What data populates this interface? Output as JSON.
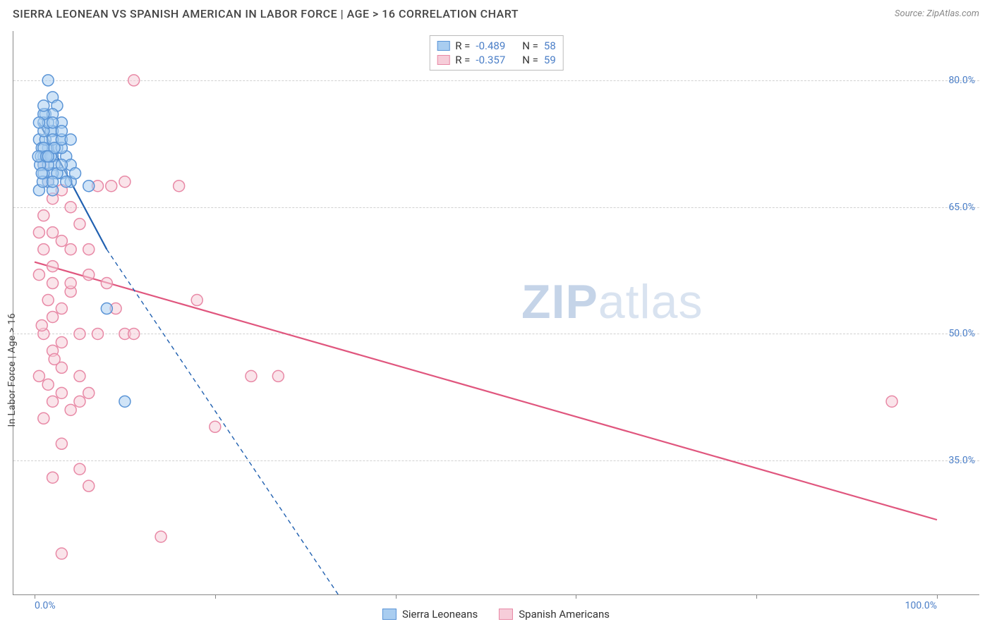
{
  "header": {
    "title": "SIERRA LEONEAN VS SPANISH AMERICAN IN LABOR FORCE | AGE > 16 CORRELATION CHART",
    "source": "Source: ZipAtlas.com"
  },
  "chart": {
    "type": "scatter",
    "ylabel": "In Labor Force | Age > 16",
    "xlim": [
      0,
      100
    ],
    "ylim": [
      20,
      85
    ],
    "yticks": [
      35.0,
      50.0,
      65.0,
      80.0
    ],
    "ytick_labels": [
      "35.0%",
      "50.0%",
      "65.0%",
      "80.0%"
    ],
    "xticks": [
      0,
      20,
      40,
      60,
      80,
      100
    ],
    "xtick_labels_shown": {
      "0": "0.0%",
      "100": "100.0%"
    },
    "grid_color": "#d0d0d0",
    "background_color": "#ffffff",
    "axis_color": "#888888",
    "label_color": "#4a7ec7",
    "point_radius": 8,
    "point_stroke_width": 1.5,
    "line_width": 2.2,
    "series": [
      {
        "name": "Sierra Leoneans",
        "color_fill": "#a9cdf0",
        "color_stroke": "#5a94d6",
        "line_color": "#2060b0",
        "corr_R": "-0.489",
        "corr_N": "58",
        "trend": {
          "x1": 0.5,
          "y1": 75,
          "x2_solid": 8,
          "y2_solid": 60,
          "x2_dash": 35,
          "y2_dash": 17
        },
        "points": [
          [
            1,
            71
          ],
          [
            1.5,
            80
          ],
          [
            2,
            78
          ],
          [
            1.2,
            76
          ],
          [
            2.5,
            77
          ],
          [
            1,
            75
          ],
          [
            0.5,
            73
          ],
          [
            2,
            74
          ],
          [
            1.5,
            72
          ],
          [
            3,
            73
          ],
          [
            1,
            70
          ],
          [
            2,
            71
          ],
          [
            0.8,
            72
          ],
          [
            2.2,
            70
          ],
          [
            3,
            69
          ],
          [
            1.5,
            68
          ],
          [
            4,
            68
          ],
          [
            2,
            69
          ],
          [
            0.5,
            67
          ],
          [
            3.5,
            71
          ],
          [
            1,
            69
          ],
          [
            2.5,
            72
          ],
          [
            1.8,
            74
          ],
          [
            0.7,
            71
          ],
          [
            3,
            75
          ],
          [
            1.2,
            73
          ],
          [
            2,
            76
          ],
          [
            4,
            70
          ],
          [
            1.5,
            70
          ],
          [
            0.9,
            68
          ],
          [
            3,
            72
          ],
          [
            1,
            74
          ],
          [
            2,
            67
          ],
          [
            0.6,
            70
          ],
          [
            3.5,
            68
          ],
          [
            1.8,
            71
          ],
          [
            2.5,
            69
          ],
          [
            1,
            72
          ],
          [
            0.4,
            71
          ],
          [
            2,
            73
          ],
          [
            1.5,
            75
          ],
          [
            3,
            70
          ],
          [
            0.8,
            69
          ],
          [
            2.2,
            72
          ],
          [
            1.3,
            71
          ],
          [
            4.5,
            69
          ],
          [
            1,
            76
          ],
          [
            2,
            68
          ],
          [
            3,
            73
          ],
          [
            1.5,
            71
          ],
          [
            6,
            67.5
          ],
          [
            8,
            53
          ],
          [
            10,
            42
          ],
          [
            4,
            73
          ],
          [
            3,
            74
          ],
          [
            2,
            75
          ],
          [
            1,
            77
          ],
          [
            0.5,
            75
          ]
        ]
      },
      {
        "name": "Spanish Americans",
        "color_fill": "#f6cdd9",
        "color_stroke": "#e889a6",
        "line_color": "#e0567e",
        "corr_R": "-0.357",
        "corr_N": "59",
        "trend": {
          "x1": 0,
          "y1": 58.5,
          "x2_solid": 100,
          "y2_solid": 28,
          "x2_dash": 100,
          "y2_dash": 28,
          "all_solid": true
        },
        "points": [
          [
            1,
            70
          ],
          [
            1.5,
            68
          ],
          [
            2,
            66
          ],
          [
            3,
            67
          ],
          [
            4,
            65
          ],
          [
            5,
            63
          ],
          [
            2,
            62
          ],
          [
            1,
            60
          ],
          [
            3,
            61
          ],
          [
            6,
            60
          ],
          [
            0.5,
            57
          ],
          [
            2,
            56
          ],
          [
            4,
            55
          ],
          [
            8,
            56
          ],
          [
            10,
            68
          ],
          [
            11,
            80
          ],
          [
            16,
            67.5
          ],
          [
            7,
            67.5
          ],
          [
            8.5,
            67.5
          ],
          [
            6,
            57
          ],
          [
            7,
            50
          ],
          [
            5,
            50
          ],
          [
            10,
            50
          ],
          [
            11,
            50
          ],
          [
            2,
            52
          ],
          [
            3,
            53
          ],
          [
            9,
            53
          ],
          [
            4,
            56
          ],
          [
            1,
            50
          ],
          [
            2,
            48
          ],
          [
            3,
            46
          ],
          [
            5,
            45
          ],
          [
            18,
            54
          ],
          [
            24,
            45
          ],
          [
            27,
            45
          ],
          [
            20,
            39
          ],
          [
            2,
            42
          ],
          [
            4,
            41
          ],
          [
            5,
            42
          ],
          [
            0.5,
            45
          ],
          [
            1.5,
            44
          ],
          [
            3,
            43
          ],
          [
            6,
            43
          ],
          [
            1,
            40
          ],
          [
            3,
            37
          ],
          [
            5,
            34
          ],
          [
            2,
            33
          ],
          [
            6,
            32
          ],
          [
            14,
            26
          ],
          [
            3,
            24
          ],
          [
            95,
            42
          ],
          [
            0.5,
            62
          ],
          [
            1,
            64
          ],
          [
            2,
            58
          ],
          [
            4,
            60
          ],
          [
            1.5,
            54
          ],
          [
            0.8,
            51
          ],
          [
            3,
            49
          ],
          [
            2.2,
            47
          ]
        ]
      }
    ]
  },
  "legend": {
    "items": [
      {
        "label": "Sierra Leoneans",
        "fill": "#a9cdf0",
        "stroke": "#5a94d6"
      },
      {
        "label": "Spanish Americans",
        "fill": "#f6cdd9",
        "stroke": "#e889a6"
      }
    ]
  },
  "watermark": {
    "bold": "ZIP",
    "light": "atlas"
  }
}
